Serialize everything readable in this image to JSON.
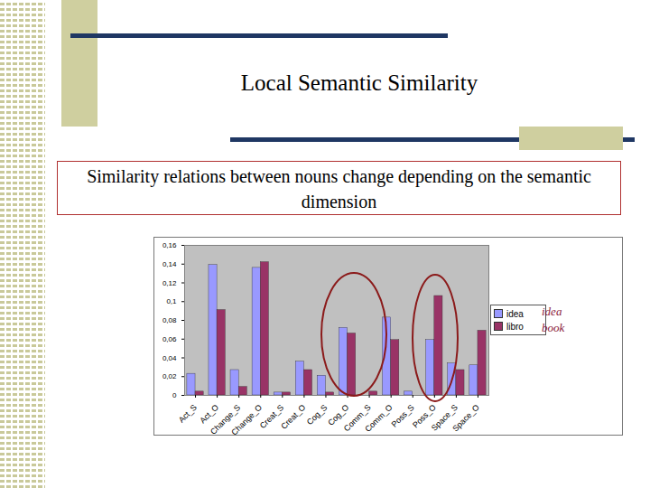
{
  "chart_data": {
    "type": "bar",
    "title": "Local Semantic Similarity",
    "subtitle": "Similarity relations between nouns change depending on the semantic dimension",
    "categories": [
      "Act_S",
      "Act_O",
      "Change_S",
      "Change_O",
      "Creat_S",
      "Creat_O",
      "Cog_S",
      "Cog_O",
      "Comm_S",
      "Comm_O",
      "Poss_S",
      "Poss_O",
      "Space_S",
      "Space_O"
    ],
    "series": [
      {
        "name": "idea",
        "color": "#9999ff",
        "values": [
          0.023,
          0.139,
          0.027,
          0.136,
          0.003,
          0.036,
          0.021,
          0.072,
          0,
          0.083,
          0.004,
          0.059,
          0.034,
          0.032
        ]
      },
      {
        "name": "libro",
        "color": "#993366",
        "values": [
          0.004,
          0.091,
          0.009,
          0.142,
          0.003,
          0.027,
          0.003,
          0.066,
          0.004,
          0.059,
          0,
          0.106,
          0.027,
          0.069
        ]
      }
    ],
    "ylim": [
      0,
      0.16
    ],
    "yticks": [
      0,
      {
        "value": 0.02,
        "label": "0,02"
      },
      {
        "value": 0.04,
        "label": "0,04"
      },
      {
        "value": 0.06,
        "label": "0,06"
      },
      {
        "value": 0.08,
        "label": "0,08"
      },
      {
        "value": 0.1,
        "label": "0,1"
      },
      {
        "value": 0.12,
        "label": "0,12"
      },
      {
        "value": 0.14,
        "label": "0,14"
      },
      {
        "value": 0.16,
        "label": "0,16"
      }
    ],
    "grid": false,
    "legend": "right",
    "annotations": [
      "idea",
      "book"
    ]
  }
}
